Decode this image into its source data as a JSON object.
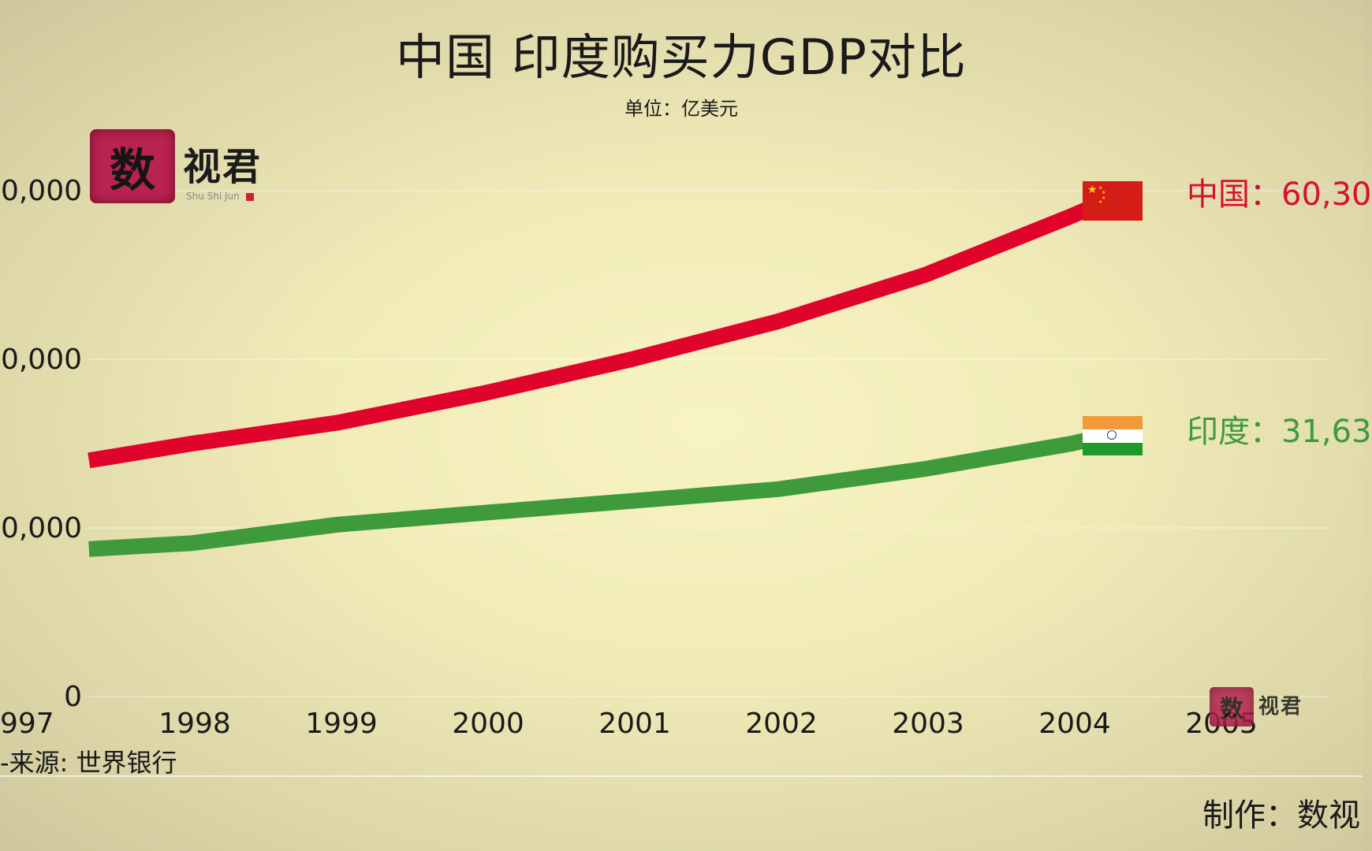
{
  "title": "中国 印度购买力GDP对比",
  "subtitle": "单位：亿美元",
  "logo": {
    "text": "数视君",
    "mark": "数",
    "brand_text": "视君",
    "sub": "Shu Shi Jun"
  },
  "source": "-来源: 世界银行",
  "maker": "制作：数视",
  "labels": {
    "china": "中国：60,30",
    "india": "印度：31,63"
  },
  "icons": {
    "china_flag": "china-flag-icon",
    "india_flag": "india-flag-icon"
  },
  "chart_data": {
    "type": "line",
    "x": [
      1997,
      1998,
      1999,
      2000,
      2001,
      2002,
      2003,
      2004,
      2005
    ],
    "x_tick_labels": [
      "997",
      "1998",
      "1999",
      "2000",
      "2001",
      "2002",
      "2003",
      "2004",
      "2005"
    ],
    "y_tick_labels": [
      "0",
      "0,000",
      "0,000",
      "0,000"
    ],
    "y_tick_values": [
      0,
      20000,
      40000,
      60000
    ],
    "ylim": [
      0,
      60000
    ],
    "grid": true,
    "series": [
      {
        "name": "中国",
        "color": "#e0042c",
        "x": [
          1997.3,
          1998,
          1999,
          2000,
          2001,
          2002,
          2003,
          2004,
          2004.2
        ],
        "values": [
          28000,
          30000,
          32500,
          36000,
          40000,
          44500,
          50000,
          57000,
          58500
        ]
      },
      {
        "name": "印度",
        "color": "#3f9a3c",
        "x": [
          1997.3,
          1998,
          1999,
          2000,
          2001,
          2002,
          2003,
          2004,
          2004.2
        ],
        "values": [
          17500,
          18200,
          20400,
          21800,
          23200,
          24600,
          27000,
          30000,
          30800
        ]
      }
    ]
  }
}
